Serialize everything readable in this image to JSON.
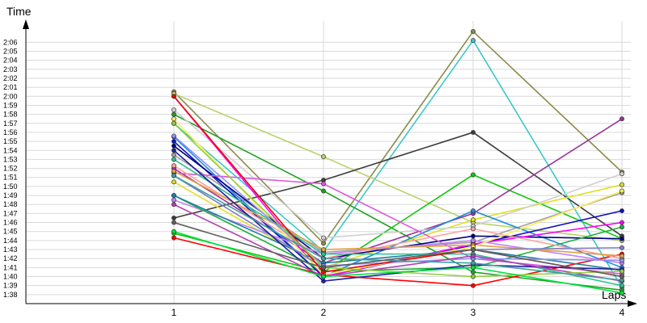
{
  "chart_data": {
    "type": "line",
    "ylabel": "Time",
    "xlabel": "Laps",
    "x": [
      1,
      2,
      3,
      4
    ],
    "xticks": [
      "1",
      "2",
      "3",
      "4"
    ],
    "yticks": [
      "1:38",
      "1:39",
      "1:40",
      "1:41",
      "1:42",
      "1:43",
      "1:44",
      "1:45",
      "1:46",
      "1:47",
      "1:48",
      "1:49",
      "1:50",
      "1:51",
      "1:52",
      "1:53",
      "1:54",
      "1:55",
      "1:56",
      "1:57",
      "1:58",
      "1:59",
      "2:00",
      "2:01",
      "2:02",
      "2:03",
      "2:04",
      "2:05",
      "2:06"
    ],
    "ylim": [
      "1:37",
      "2:08"
    ],
    "grid": true,
    "series": [
      {
        "color": "#8b8b4a",
        "values": [
          "2:00.5",
          "1:43.7",
          "2:07.2",
          "1:51.6"
        ]
      },
      {
        "color": "#3cc8c8",
        "values": [
          "1:57.0",
          "1:42.8",
          "2:06.2",
          "1:38.8"
        ]
      },
      {
        "color": "#b8d26a",
        "values": [
          "2:00.3",
          "1:53.3",
          "1:46.0",
          "1:44.0"
        ]
      },
      {
        "color": "#3c3c3c",
        "values": [
          "1:46.5",
          "1:50.7",
          "1:56.0",
          "1:44.5"
        ]
      },
      {
        "color": "#20a020",
        "values": [
          "1:58.0",
          "1:49.5",
          "1:40.5",
          "1:38.5"
        ]
      },
      {
        "color": "#10c810",
        "values": [
          "1:44.8",
          "1:40.5",
          "1:51.3",
          "1:44.2"
        ]
      },
      {
        "color": "#993399",
        "values": [
          "1:52.0",
          "1:41.5",
          "1:47.0",
          "1:57.5"
        ]
      },
      {
        "color": "#e0e020",
        "values": [
          "1:50.5",
          "1:41.0",
          "1:46.3",
          "1:50.2"
        ]
      },
      {
        "color": "#d0d0d0",
        "values": [
          "1:58.5",
          "1:44.3",
          "1:45.6",
          "1:51.4"
        ]
      },
      {
        "color": "#a0a0a0",
        "values": [
          "1:53.5",
          "1:42.7",
          "1:43.8",
          "1:49.3"
        ]
      },
      {
        "color": "#1c8cdc",
        "values": [
          "1:55.5",
          "1:40.0",
          "1:47.3",
          "1:41.0"
        ]
      },
      {
        "color": "#1010c8",
        "values": [
          "1:55.0",
          "1:40.0",
          "1:43.5",
          "1:47.3"
        ]
      },
      {
        "color": "#000080",
        "values": [
          "1:54.5",
          "1:42.0",
          "1:44.5",
          "1:44.2"
        ]
      },
      {
        "color": "#ff0000",
        "values": [
          "1:44.3",
          "1:40.2",
          "1:39.0",
          "1:42.5"
        ]
      },
      {
        "color": "#ff00ff",
        "values": [
          "2:00.0",
          "1:40.0",
          "1:43.6",
          "1:46.0"
        ]
      },
      {
        "color": "#dd55dd",
        "values": [
          "1:51.5",
          "1:50.3",
          "1:42.0",
          "1:40.3"
        ]
      },
      {
        "color": "#c080ff",
        "values": [
          "1:48.5",
          "1:42.5",
          "1:44.0",
          "1:41.5"
        ]
      },
      {
        "color": "#20b040",
        "values": [
          "1:49.0",
          "1:40.6",
          "1:41.0",
          "1:45.5"
        ]
      },
      {
        "color": "#ffa0a0",
        "values": [
          "1:52.3",
          "1:42.0",
          "1:45.3",
          "1:42.0"
        ]
      },
      {
        "color": "#e0a040",
        "values": [
          "1:51.7",
          "1:43.0",
          "1:43.5",
          "1:42.3"
        ]
      },
      {
        "color": "#2080a0",
        "values": [
          "1:49.0",
          "1:41.5",
          "1:43.0",
          "1:40.7"
        ]
      },
      {
        "color": "#ffee60",
        "values": [
          "1:57.5",
          "1:40.2",
          "1:43.3",
          "1:49.5"
        ]
      },
      {
        "color": "#30c090",
        "values": [
          "1:53.0",
          "1:42.5",
          "1:42.5",
          "1:39.0"
        ]
      },
      {
        "color": "#9090ff",
        "values": [
          "1:55.6",
          "1:41.2",
          "1:42.0",
          "1:41.8"
        ]
      },
      {
        "color": "#8080c0",
        "values": [
          "1:51.2",
          "1:41.0",
          "1:43.0",
          "1:43.2"
        ]
      },
      {
        "color": "#ee0000",
        "values": [
          "2:00.0",
          "1:40.5",
          "1:43.0",
          "1:40.0"
        ]
      },
      {
        "color": "#2020a0",
        "values": [
          "1:54.0",
          "1:39.5",
          "1:41.3",
          "1:40.8"
        ]
      },
      {
        "color": "#b040b0",
        "values": [
          "1:48.0",
          "1:40.0",
          "1:42.3",
          "1:39.5"
        ]
      },
      {
        "color": "#90d040",
        "values": [
          "1:57.0",
          "1:41.0",
          "1:40.0",
          "1:40.6"
        ]
      },
      {
        "color": "#40a0a0",
        "values": [
          "1:51.2",
          "1:42.0",
          "1:41.5",
          "1:39.6"
        ]
      },
      {
        "color": "#606060",
        "values": [
          "1:46.0",
          "1:41.0",
          "1:43.0",
          "1:40.0"
        ]
      },
      {
        "color": "#00e040",
        "values": [
          "1:45.0",
          "1:40.0",
          "1:41.0",
          "1:38.2"
        ]
      }
    ]
  }
}
